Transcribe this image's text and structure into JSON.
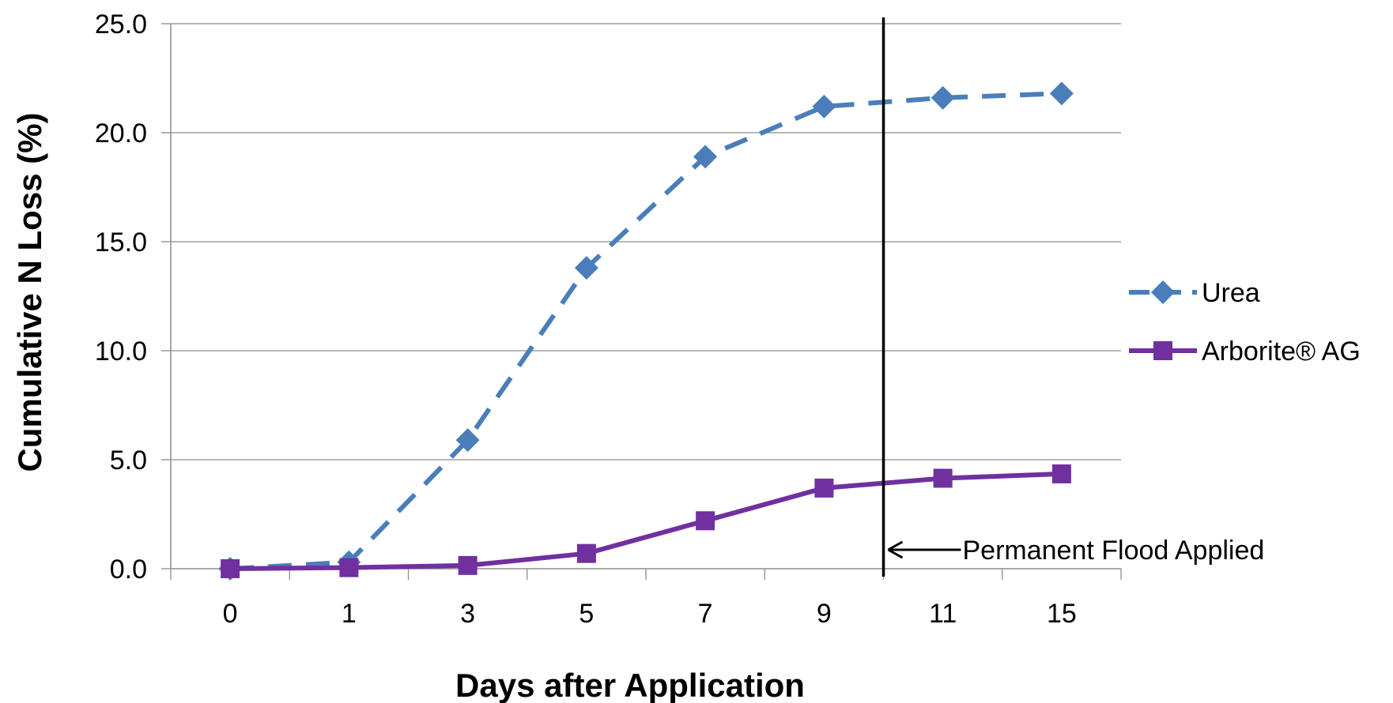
{
  "chart_data": {
    "type": "line",
    "categories": [
      "0",
      "1",
      "3",
      "5",
      "7",
      "9",
      "11",
      "15"
    ],
    "series": [
      {
        "name": "Urea",
        "values": [
          0.0,
          0.3,
          5.9,
          13.8,
          18.9,
          21.2,
          21.6,
          21.8
        ],
        "color": "#4a7ebb",
        "style": "dashed",
        "marker": "diamond"
      },
      {
        "name": "Arborite® AG",
        "values": [
          0.0,
          0.05,
          0.15,
          0.7,
          2.2,
          3.7,
          4.15,
          4.35
        ],
        "color": "#7030a0",
        "style": "solid",
        "marker": "square"
      }
    ],
    "xlabel": "Days after Application",
    "ylabel": "Cumulative N Loss (%)",
    "ylim": [
      0,
      25
    ],
    "yticks": [
      "0.0",
      "5.0",
      "10.0",
      "15.0",
      "20.0",
      "25.0"
    ],
    "grid": "horizontal",
    "legend_position": "right",
    "annotation": {
      "text": "Permanent Flood Applied",
      "between_categories": [
        "9",
        "11"
      ]
    }
  }
}
